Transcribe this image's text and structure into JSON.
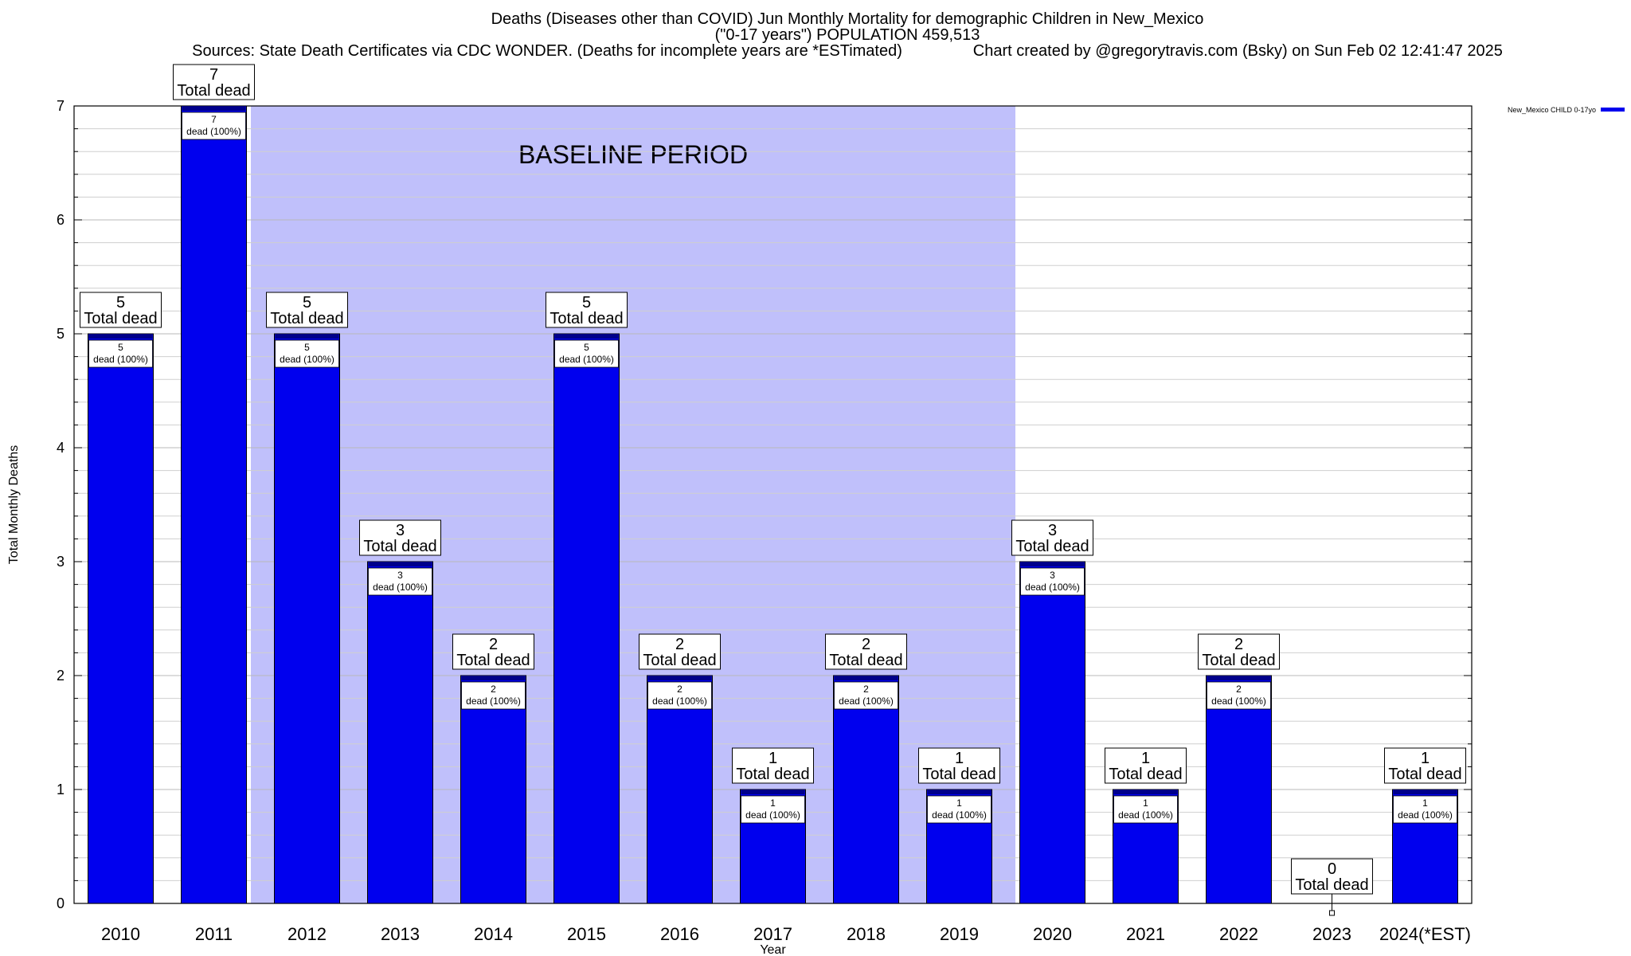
{
  "title": {
    "line1": "Deaths (Diseases other than COVID) Jun Monthly Mortality for demographic Children in New_Mexico",
    "line2": "(\"0-17 years\") POPULATION 459,513",
    "line3": "Sources: State Death Certificates via CDC WONDER. (Deaths for incomplete years are *ESTimated)                Chart created by @gregorytravis.com (Bsky) on Sun Feb 02 12:41:47 2025"
  },
  "chart_data": {
    "type": "bar",
    "categories": [
      "2010",
      "2011",
      "2012",
      "2013",
      "2014",
      "2015",
      "2016",
      "2017",
      "2018",
      "2019",
      "2020",
      "2021",
      "2022",
      "2023",
      "2024(*EST)"
    ],
    "series": [
      {
        "name": "New_Mexico CHILD 0-17yo",
        "values": [
          5,
          7,
          5,
          3,
          2,
          5,
          2,
          1,
          2,
          1,
          3,
          1,
          2,
          0,
          1
        ]
      }
    ],
    "xlabel": "Year",
    "ylabel": "Total Monthly Deaths",
    "ylim": [
      0,
      7
    ],
    "yticks": [
      0,
      1,
      2,
      3,
      4,
      5,
      6,
      7
    ],
    "grid": true,
    "legend_position": "top-right",
    "total_label": "Total dead",
    "inner_label_suffix": "dead (100%)",
    "baseline": {
      "label": "BASELINE PERIOD",
      "start_category": "2012",
      "end_category": "2019",
      "color": "#c0c0fb"
    },
    "bar_color": "#0000ee",
    "bar_top_color": "#00008b"
  }
}
